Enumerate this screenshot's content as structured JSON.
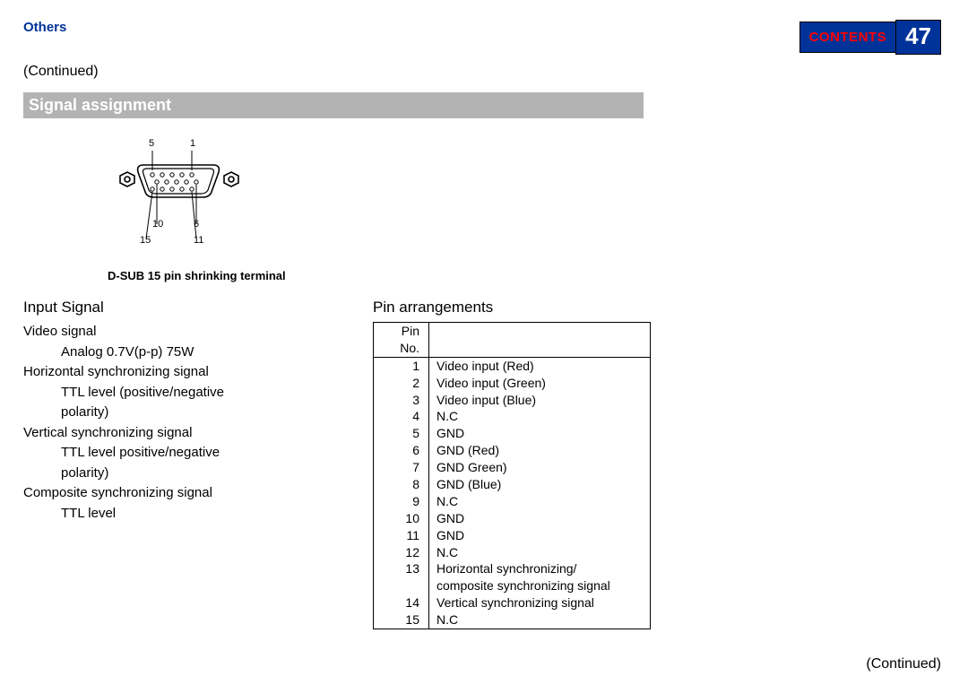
{
  "header": {
    "section_label": "Others",
    "contents_label": "CONTENTS",
    "page_number": "47",
    "continued_top": "(Continued)"
  },
  "heading": "Signal assignment",
  "diagram": {
    "lbl_5": "5",
    "lbl_1": "1",
    "lbl_10": "10",
    "lbl_6": "6",
    "lbl_15": "15",
    "lbl_11": "11",
    "caption": "D-SUB 15 pin shrinking terminal"
  },
  "input_signal": {
    "title": "Input Signal",
    "l1": "Video signal",
    "l1a": "Analog 0.7V(p-p)   75W",
    "l2": "Horizontal synchronizing signal",
    "l2a": "TTL level (positive/negative",
    "l2b": "polarity)",
    "l3": "Vertical synchronizing signal",
    "l3a": "TTL level  positive/negative",
    "l3b": "polarity)",
    "l4": "Composite synchronizing signal",
    "l4a": "TTL level"
  },
  "pin_arrangements": {
    "title": "Pin arrangements",
    "header": "Pin No.",
    "rows": [
      {
        "no": "1",
        "desc": "Video input (Red)"
      },
      {
        "no": "2",
        "desc": "Video input (Green)"
      },
      {
        "no": "3",
        "desc": "Video input (Blue)"
      },
      {
        "no": "4",
        "desc": "N.C"
      },
      {
        "no": "5",
        "desc": "GND"
      },
      {
        "no": "6",
        "desc": "GND (Red)"
      },
      {
        "no": "7",
        "desc": "GND Green)"
      },
      {
        "no": "8",
        "desc": "GND (Blue)"
      },
      {
        "no": "9",
        "desc": "N.C"
      },
      {
        "no": "10",
        "desc": "GND"
      },
      {
        "no": "11",
        "desc": "GND"
      },
      {
        "no": "12",
        "desc": "N.C"
      },
      {
        "no": "13",
        "desc": "Horizontal synchronizing/"
      },
      {
        "no": "",
        "desc": "composite synchronizing signal"
      },
      {
        "no": "14",
        "desc": "Vertical synchronizing signal"
      },
      {
        "no": "15",
        "desc": "N.C"
      }
    ]
  },
  "continued_bottom": "(Continued)",
  "colors": {
    "section_label": "#003399",
    "tab_bg": "#003399",
    "contents_fg": "#ff0000",
    "page_fg": "#ffffff",
    "heading_bg": "#b3b3b3",
    "heading_fg": "#ffffff"
  }
}
